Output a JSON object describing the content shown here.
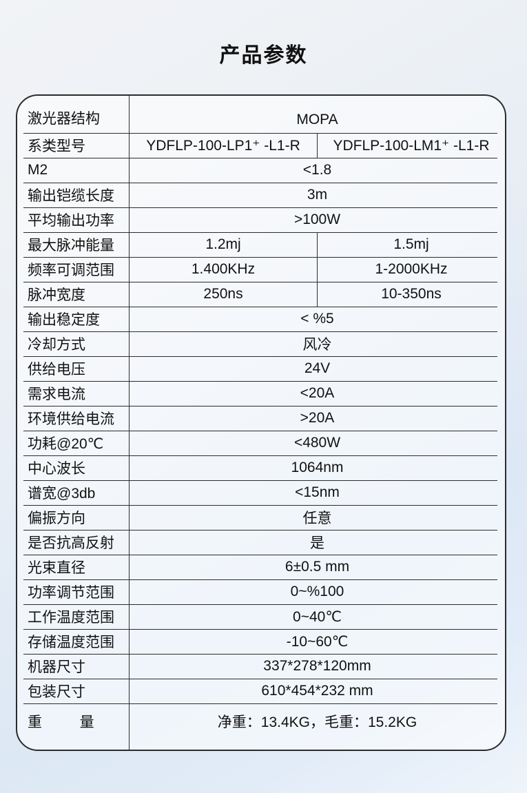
{
  "page": {
    "title": "产品参数"
  },
  "colors": {
    "border": "#2b2b2b",
    "text": "#111111",
    "background_top": "#f1f3f6",
    "background_bottom": "#e2ecf8",
    "table_background": "rgba(255,255,255,0.55)"
  },
  "table": {
    "rows": [
      {
        "label": "激光器结构",
        "values": [
          "MOPA"
        ]
      },
      {
        "label": "系类型号",
        "values": [
          "YDFLP-100-LP1⁺ -L1-R",
          "YDFLP-100-LM1⁺ -L1-R"
        ]
      },
      {
        "label": "M2",
        "values": [
          "<1.8"
        ]
      },
      {
        "label": "输出铠缆长度",
        "values": [
          "3m"
        ]
      },
      {
        "label": "平均输出功率",
        "values": [
          ">100W"
        ]
      },
      {
        "label": "最大脉冲能量",
        "values": [
          "1.2mj",
          "1.5mj"
        ]
      },
      {
        "label": "频率可调范围",
        "values": [
          "1.400KHz",
          "1-2000KHz"
        ]
      },
      {
        "label": "脉冲宽度",
        "values": [
          "250ns",
          "10-350ns"
        ]
      },
      {
        "label": "输出稳定度",
        "values": [
          "< %5"
        ]
      },
      {
        "label": "冷却方式",
        "values": [
          "风冷"
        ]
      },
      {
        "label": "供给电压",
        "values": [
          "24V"
        ]
      },
      {
        "label": "需求电流",
        "values": [
          "<20A"
        ]
      },
      {
        "label": "环境供给电流",
        "values": [
          ">20A"
        ]
      },
      {
        "label": "功耗@20℃",
        "values": [
          "<480W"
        ]
      },
      {
        "label": "中心波长",
        "values": [
          "1064nm"
        ]
      },
      {
        "label": "谱宽@3db",
        "values": [
          "<15nm"
        ]
      },
      {
        "label": "偏振方向",
        "values": [
          "任意"
        ]
      },
      {
        "label": "是否抗高反射",
        "values": [
          "是"
        ]
      },
      {
        "label": "光束直径",
        "values": [
          "6±0.5 mm"
        ]
      },
      {
        "label": "功率调节范围",
        "values": [
          "0~%100"
        ]
      },
      {
        "label": "工作温度范围",
        "values": [
          "0~40℃"
        ]
      },
      {
        "label": "存储温度范围",
        "values": [
          "-10~60℃"
        ]
      },
      {
        "label": "机器尺寸",
        "values": [
          "337*278*120mm"
        ]
      },
      {
        "label": "包装尺寸",
        "values": [
          "610*454*232 mm"
        ]
      },
      {
        "label": "重量",
        "values": [
          "净重：13.4KG，毛重：15.2KG"
        ],
        "spread": true
      }
    ]
  }
}
